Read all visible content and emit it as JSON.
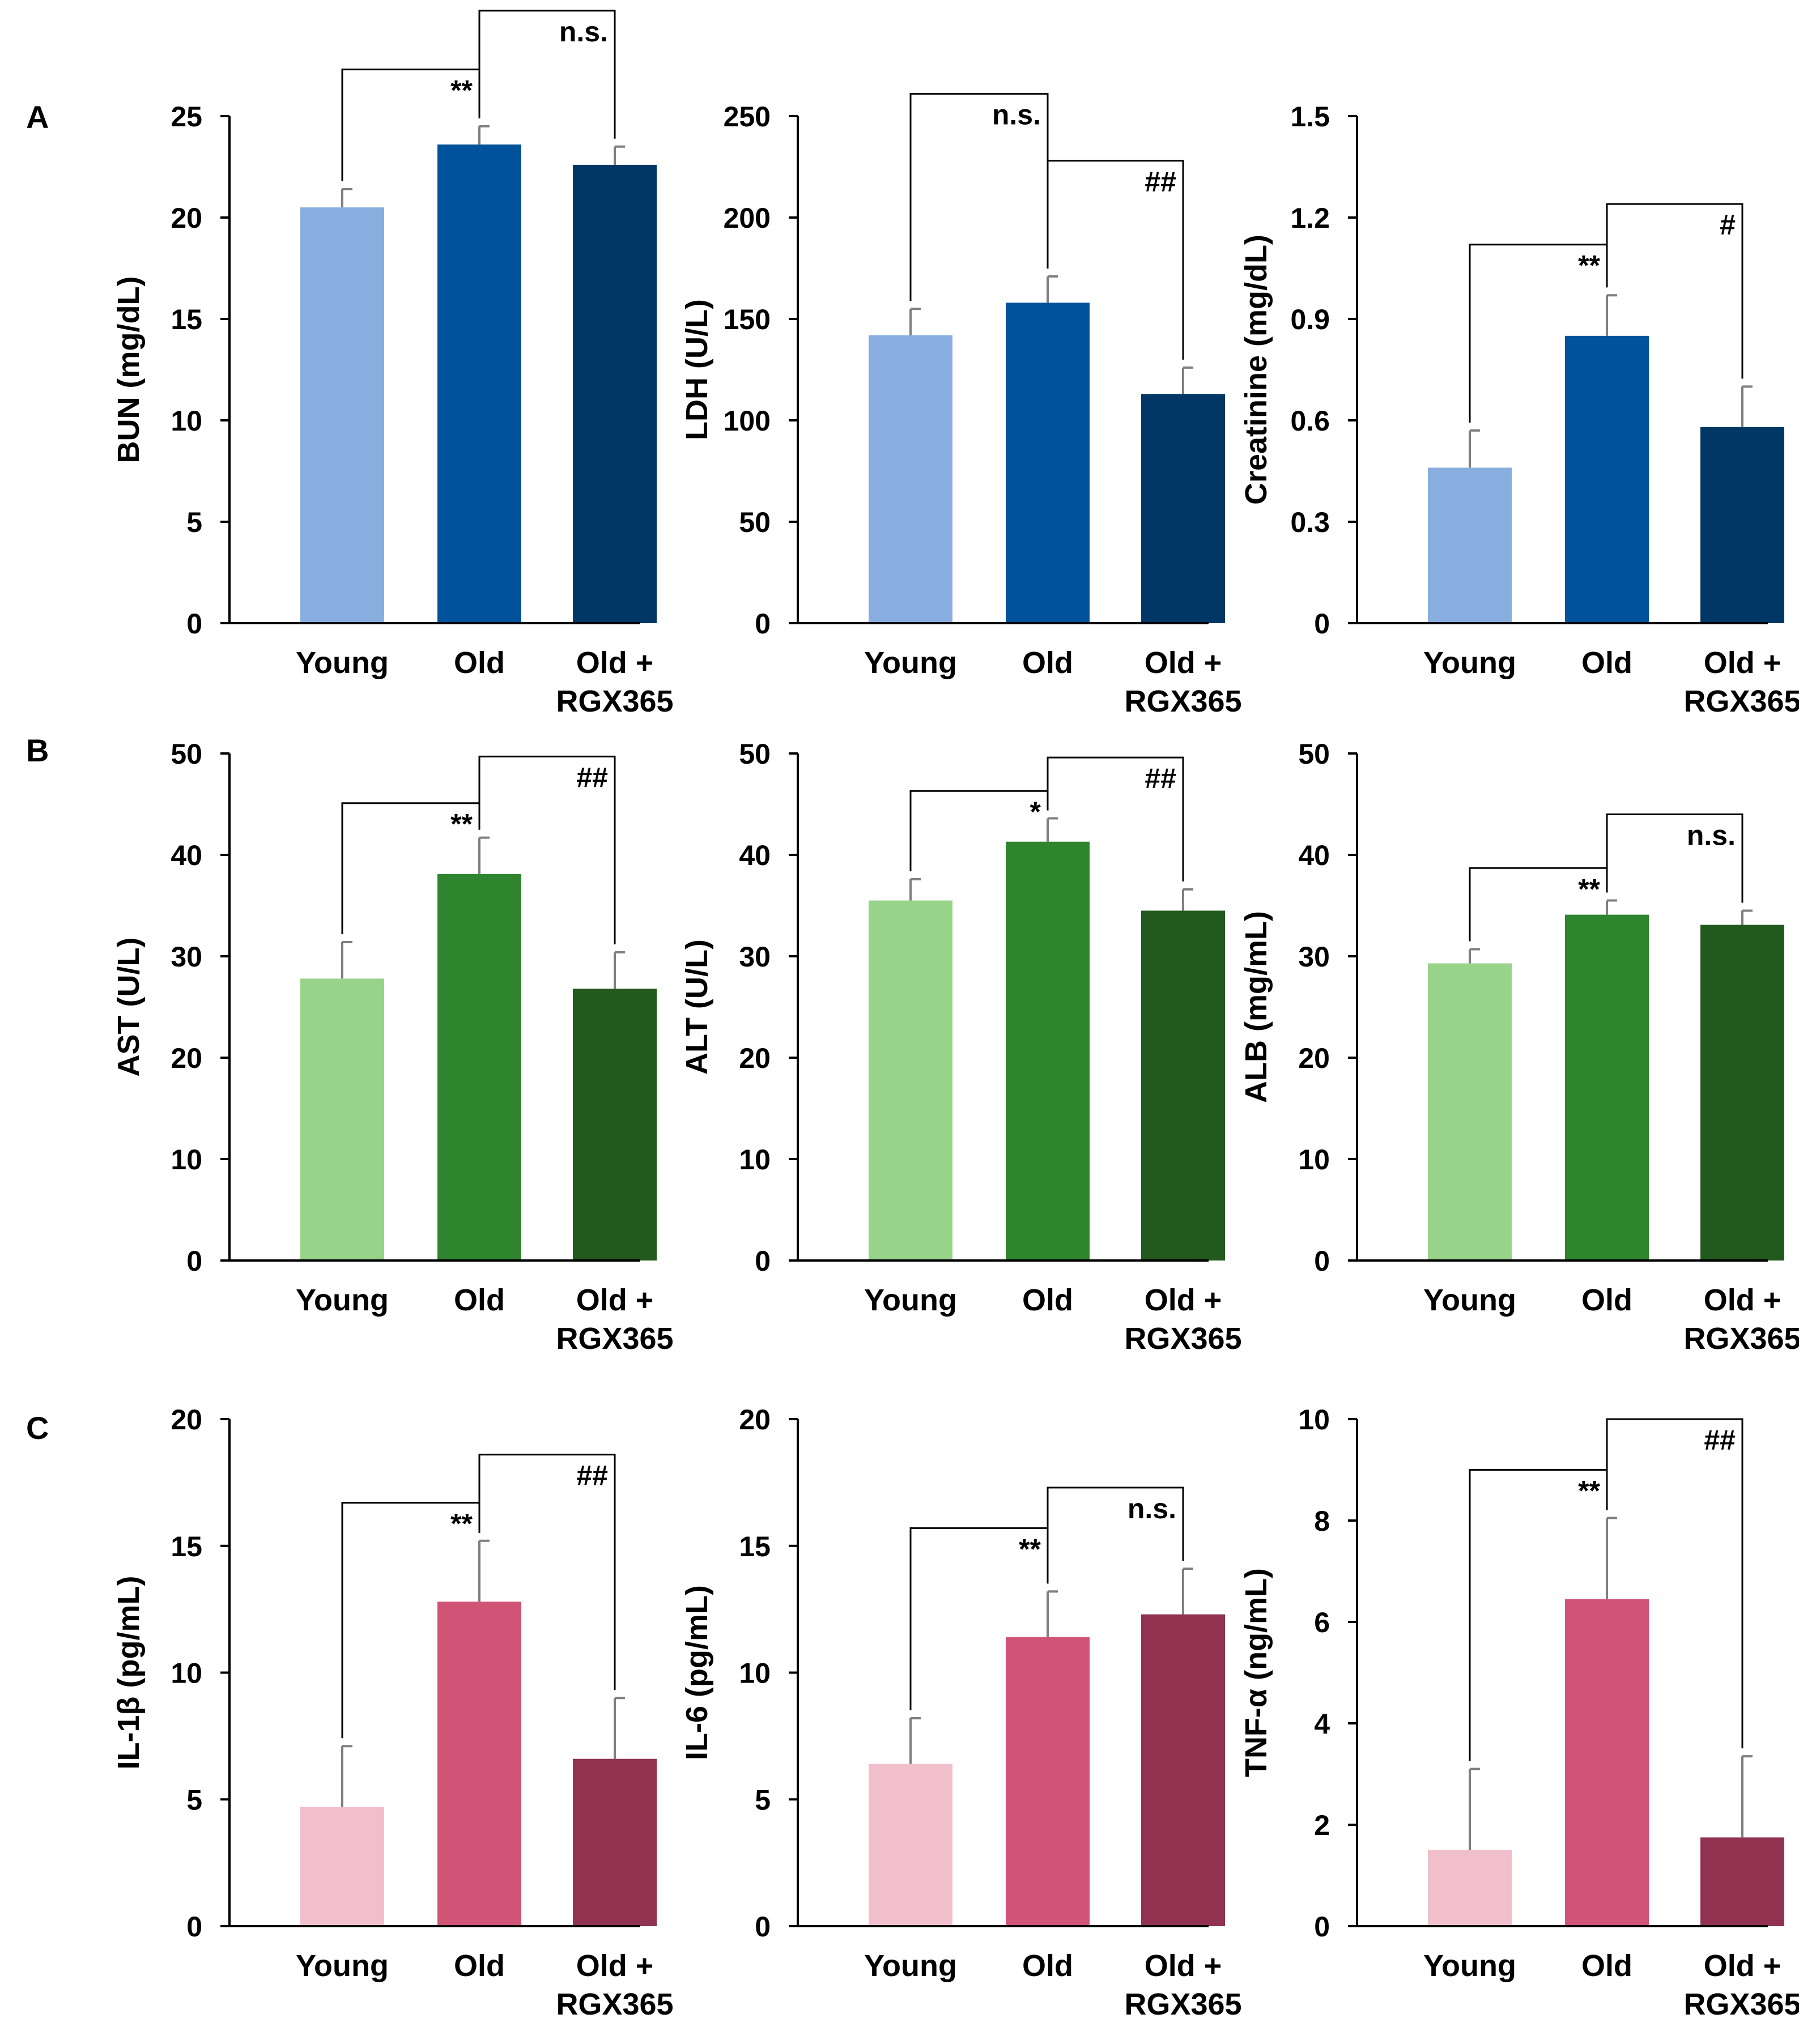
{
  "figure": {
    "panel_labels": [
      "A",
      "B",
      "C"
    ],
    "categories": [
      "Young",
      "Old",
      "Old + RGX365"
    ]
  },
  "chart_data": [
    {
      "type": "bar",
      "panel": "A",
      "ylabel": "BUN (mg/dL)",
      "ylim": [
        0,
        25
      ],
      "yticks": [
        0,
        5,
        10,
        15,
        20,
        25
      ],
      "categories": [
        "Young",
        "Old",
        "Old + RGX365"
      ],
      "values": [
        20.5,
        23.6,
        22.6
      ],
      "errors": [
        0.9,
        0.9,
        0.9
      ],
      "colors": [
        "#87AEDF",
        "#00529B",
        "#003764"
      ],
      "annotations": [
        {
          "from": 0,
          "to": 1,
          "label": "**",
          "top": 27.3
        },
        {
          "from": 1,
          "to": 2,
          "label": "n.s.",
          "top": 30.2
        }
      ]
    },
    {
      "type": "bar",
      "panel": "A",
      "ylabel": "LDH (U/L)",
      "ylim": [
        0,
        250
      ],
      "yticks": [
        0,
        50,
        100,
        150,
        200,
        250
      ],
      "categories": [
        "Young",
        "Old",
        "Old + RGX365"
      ],
      "values": [
        142,
        158,
        113
      ],
      "errors": [
        13,
        13,
        13
      ],
      "colors": [
        "#87AEDF",
        "#00529B",
        "#003764"
      ],
      "annotations": [
        {
          "from": 0,
          "to": 1,
          "label": "n.s.",
          "top": 261
        },
        {
          "from": 1,
          "to": 2,
          "label": "##",
          "top": 228
        }
      ]
    },
    {
      "type": "bar",
      "panel": "A",
      "ylabel": "Creatinine (mg/dL)",
      "ylim": [
        0,
        1.5
      ],
      "yticks": [
        0,
        0.3,
        0.6,
        0.9,
        1.2,
        1.5
      ],
      "categories": [
        "Young",
        "Old",
        "Old + RGX365"
      ],
      "values": [
        0.46,
        0.85,
        0.58
      ],
      "errors": [
        0.11,
        0.12,
        0.12
      ],
      "colors": [
        "#87AEDF",
        "#00529B",
        "#003764"
      ],
      "annotations": [
        {
          "from": 0,
          "to": 1,
          "label": "**",
          "top": 1.12
        },
        {
          "from": 1,
          "to": 2,
          "label": "#",
          "top": 1.24
        }
      ]
    },
    {
      "type": "bar",
      "panel": "B",
      "ylabel": "AST (U/L)",
      "ylim": [
        0,
        50
      ],
      "yticks": [
        0,
        10,
        20,
        30,
        40,
        50
      ],
      "categories": [
        "Young",
        "Old",
        "Old + RGX365"
      ],
      "values": [
        27.8,
        38.1,
        26.8
      ],
      "errors": [
        3.6,
        3.6,
        3.6
      ],
      "colors": [
        "#97D48A",
        "#2E852E",
        "#225A1D"
      ],
      "annotations": [
        {
          "from": 0,
          "to": 1,
          "label": "**",
          "top": 45.1
        },
        {
          "from": 1,
          "to": 2,
          "label": "##",
          "top": 49.7
        }
      ]
    },
    {
      "type": "bar",
      "panel": "B",
      "ylabel": "ALT (U/L)",
      "ylim": [
        0,
        50
      ],
      "yticks": [
        0,
        10,
        20,
        30,
        40,
        50
      ],
      "categories": [
        "Young",
        "Old",
        "Old + RGX365"
      ],
      "values": [
        35.5,
        41.3,
        34.5
      ],
      "errors": [
        2.1,
        2.3,
        2.1
      ],
      "colors": [
        "#97D48A",
        "#2E852E",
        "#225A1D"
      ],
      "annotations": [
        {
          "from": 0,
          "to": 1,
          "label": "*",
          "top": 46.3
        },
        {
          "from": 1,
          "to": 2,
          "label": "##",
          "top": 49.6
        }
      ]
    },
    {
      "type": "bar",
      "panel": "B",
      "ylabel": "ALB (mg/mL)",
      "ylim": [
        0,
        50
      ],
      "yticks": [
        0,
        10,
        20,
        30,
        40,
        50
      ],
      "categories": [
        "Young",
        "Old",
        "Old + RGX365"
      ],
      "values": [
        29.3,
        34.1,
        33.1
      ],
      "errors": [
        1.4,
        1.4,
        1.4
      ],
      "colors": [
        "#97D48A",
        "#2E852E",
        "#225A1D"
      ],
      "annotations": [
        {
          "from": 0,
          "to": 1,
          "label": "**",
          "top": 38.7
        },
        {
          "from": 1,
          "to": 2,
          "label": "n.s.",
          "top": 44.0
        }
      ]
    },
    {
      "type": "bar",
      "panel": "C",
      "ylabel": "IL-1β (pg/mL)",
      "ylim": [
        0,
        20
      ],
      "yticks": [
        0,
        5,
        10,
        15,
        20
      ],
      "categories": [
        "Young",
        "Old",
        "Old + RGX365"
      ],
      "values": [
        4.7,
        12.8,
        6.6
      ],
      "errors": [
        2.4,
        2.4,
        2.4
      ],
      "colors": [
        "#F0BFCB",
        "#D05475",
        "#903250"
      ],
      "annotations": [
        {
          "from": 0,
          "to": 1,
          "label": "**",
          "top": 16.7
        },
        {
          "from": 1,
          "to": 2,
          "label": "##",
          "top": 18.6
        }
      ]
    },
    {
      "type": "bar",
      "panel": "C",
      "ylabel": "IL-6 (pg/mL)",
      "ylim": [
        0,
        20
      ],
      "yticks": [
        0,
        5,
        10,
        15,
        20
      ],
      "categories": [
        "Young",
        "Old",
        "Old + RGX365"
      ],
      "values": [
        6.4,
        11.4,
        12.3
      ],
      "errors": [
        1.8,
        1.8,
        1.8
      ],
      "colors": [
        "#F0BFCB",
        "#D05475",
        "#903250"
      ],
      "annotations": [
        {
          "from": 0,
          "to": 1,
          "label": "**",
          "top": 15.7
        },
        {
          "from": 1,
          "to": 2,
          "label": "n.s.",
          "top": 17.3
        }
      ]
    },
    {
      "type": "bar",
      "panel": "C",
      "ylabel": "TNF-α (ng/mL)",
      "ylim": [
        0,
        10
      ],
      "yticks": [
        0,
        2,
        4,
        6,
        8,
        10
      ],
      "categories": [
        "Young",
        "Old",
        "Old + RGX365"
      ],
      "values": [
        1.5,
        6.45,
        1.75
      ],
      "errors": [
        1.6,
        1.6,
        1.6
      ],
      "colors": [
        "#F0BFCB",
        "#D05475",
        "#903250"
      ],
      "annotations": [
        {
          "from": 0,
          "to": 1,
          "label": "**",
          "top": 9.0
        },
        {
          "from": 1,
          "to": 2,
          "label": "##",
          "top": 10.0
        }
      ]
    }
  ]
}
